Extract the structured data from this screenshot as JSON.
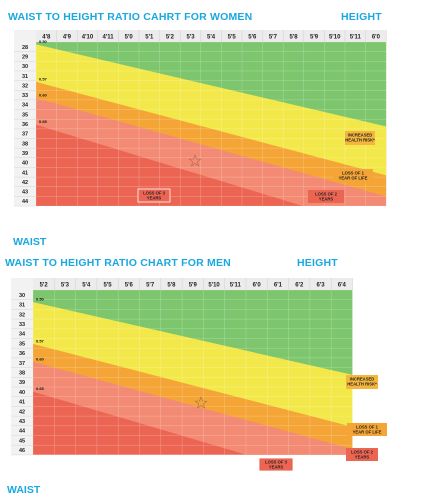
{
  "women": {
    "title": "WAIST TO HEIGHT RATIO CAHRT FOR WOMEN",
    "height_label": "HEIGHT",
    "waist_label": "WAIST"
  },
  "men": {
    "title": "WAIST TO HEIGHT RATIO CHART FOR MEN",
    "height_label": "HEIGHT",
    "waist_label": "WAIST"
  },
  "chart_data": [
    {
      "type": "heatmap",
      "title": "WAIST TO HEIGHT RATIO CAHRT FOR WOMEN",
      "xlabel": "HEIGHT",
      "ylabel": "WAIST",
      "x": [
        "4'8",
        "4'9",
        "4'10",
        "4'11",
        "5'0",
        "5'1",
        "5'2",
        "5'3",
        "5'4",
        "5'5",
        "5'6",
        "5'7",
        "5'8",
        "5'9",
        "5'10",
        "5'11",
        "6'0"
      ],
      "y": [
        28,
        29,
        30,
        31,
        32,
        33,
        34,
        35,
        36,
        37,
        38,
        39,
        40,
        41,
        42,
        43,
        44
      ],
      "zones": [
        {
          "color": "#7dc66e"
        },
        {
          "color": "#f3e84a"
        },
        {
          "color": "#f4a536"
        },
        {
          "color": "#f38a74"
        },
        {
          "color": "#ec6553"
        }
      ],
      "boundary_ratios": [
        0.5,
        0.57,
        0.6,
        0.65
      ],
      "ratio_labels": [
        "0.50",
        "0.57",
        "0.60",
        "0.65"
      ],
      "annotations": [
        {
          "text": [
            "INCREASED",
            "HEALTH RISK*"
          ],
          "color": "#f4b63c"
        },
        {
          "text": [
            "LOSS OF 1",
            "YEAR OF LIFE"
          ],
          "color": "#f4a536"
        },
        {
          "text": [
            "LOSS OF 2",
            "YEARS"
          ],
          "color": "#ec6553"
        },
        {
          "text": [
            "LOSS OF 3",
            "YEARS"
          ],
          "color": "#ec6553"
        }
      ]
    },
    {
      "type": "heatmap",
      "title": "WAIST TO HEIGHT RATIO CHART FOR MEN",
      "xlabel": "HEIGHT",
      "ylabel": "WAIST",
      "x": [
        "5'2",
        "5'3",
        "5'4",
        "5'5",
        "5'6",
        "5'7",
        "5'8",
        "5'9",
        "5'10",
        "5'11",
        "6'0",
        "6'1",
        "6'2",
        "6'3",
        "6'4"
      ],
      "y": [
        30,
        31,
        32,
        33,
        34,
        35,
        36,
        37,
        38,
        39,
        40,
        41,
        42,
        43,
        44,
        45,
        46
      ],
      "zones": [
        {
          "color": "#7dc66e"
        },
        {
          "color": "#f3e84a"
        },
        {
          "color": "#f4a536"
        },
        {
          "color": "#f38a74"
        },
        {
          "color": "#ec6553"
        }
      ],
      "boundary_ratios": [
        0.5,
        0.57,
        0.6,
        0.65
      ],
      "ratio_labels": [
        "0.50",
        "0.57",
        "0.60",
        "0.65"
      ],
      "annotations": [
        {
          "text": [
            "INCREASED",
            "HEALTH RISK*"
          ],
          "color": "#f4b63c"
        },
        {
          "text": [
            "LOSS OF 1",
            "YEAR OF LIFE"
          ],
          "color": "#f4a536"
        },
        {
          "text": [
            "LOSS OF 2",
            "YEARS"
          ],
          "color": "#ec6553"
        },
        {
          "text": [
            "LOSS OF 3",
            "YEARS"
          ],
          "color": "#ec6553"
        }
      ]
    }
  ]
}
